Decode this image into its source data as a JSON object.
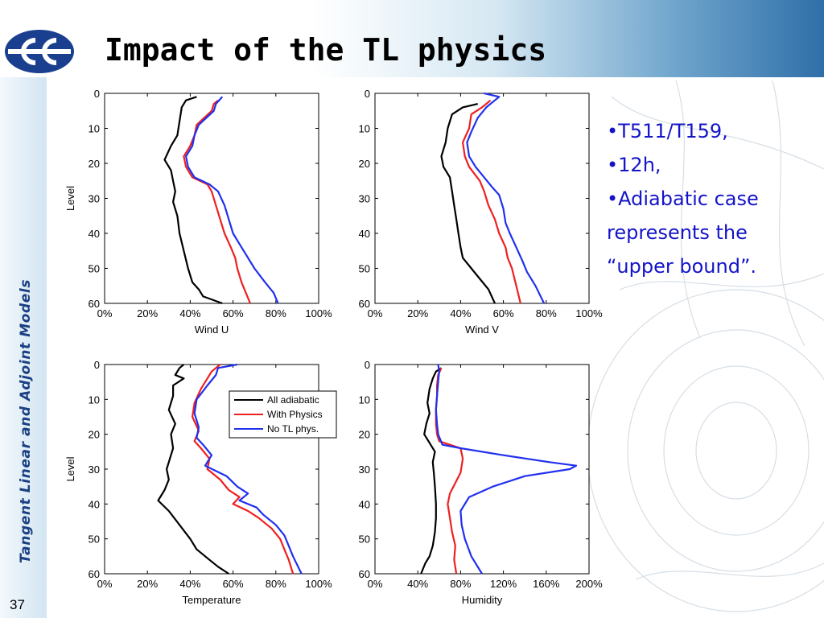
{
  "slide": {
    "title": "Impact of the TL physics",
    "side_label": "Tangent Linear and Adjoint Models",
    "slide_number": "37",
    "notes": [
      "•T511/T159,",
      "•12h,",
      "•Adiabatic case",
      "represents the",
      "“upper bound”."
    ],
    "colors": {
      "title": "#000000",
      "notes": "#1414c8",
      "side_label": "#1a3f82"
    },
    "logo_icon": "ecmwf-logo-icon"
  },
  "chart_data": [
    {
      "type": "line",
      "orientation": "vertical-profile",
      "xlabel": "Wind U",
      "ylabel": "Level",
      "xlim": [
        0,
        100
      ],
      "ylim": [
        0,
        60
      ],
      "y_inverted": true,
      "xticks": [
        "0%",
        "20%",
        "40%",
        "60%",
        "80%",
        "100%"
      ],
      "yticks": [
        "0",
        "10",
        "20",
        "30",
        "40",
        "50",
        "60"
      ],
      "legend": false,
      "series": [
        {
          "color": "#000000",
          "points": [
            [
              43,
              1
            ],
            [
              38,
              2
            ],
            [
              36,
              4
            ],
            [
              35,
              8
            ],
            [
              34,
              12
            ],
            [
              31,
              15
            ],
            [
              28,
              19
            ],
            [
              31,
              22
            ],
            [
              32,
              25
            ],
            [
              33,
              28
            ],
            [
              32,
              31
            ],
            [
              34,
              35
            ],
            [
              35,
              40
            ],
            [
              37,
              45
            ],
            [
              39,
              50
            ],
            [
              41,
              54
            ],
            [
              44,
              56
            ],
            [
              46,
              58
            ],
            [
              55,
              60
            ]
          ]
        },
        {
          "color": "#ee2020",
          "points": [
            [
              53,
              2
            ],
            [
              51,
              3
            ],
            [
              50,
              5
            ],
            [
              43,
              9
            ],
            [
              42,
              12
            ],
            [
              40,
              15
            ],
            [
              37,
              18
            ],
            [
              38,
              21
            ],
            [
              41,
              24
            ],
            [
              48,
              26
            ],
            [
              50,
              28
            ],
            [
              52,
              32
            ],
            [
              54,
              36
            ],
            [
              56,
              40
            ],
            [
              59,
              44
            ],
            [
              61,
              47
            ],
            [
              62,
              50
            ],
            [
              64,
              54
            ],
            [
              66,
              57
            ],
            [
              68,
              60
            ]
          ]
        },
        {
          "color": "#2030ee",
          "points": [
            [
              55,
              1
            ],
            [
              52,
              3
            ],
            [
              51,
              5
            ],
            [
              44,
              9
            ],
            [
              42,
              12
            ],
            [
              41,
              15
            ],
            [
              38,
              18
            ],
            [
              39,
              21
            ],
            [
              42,
              24
            ],
            [
              49,
              26
            ],
            [
              53,
              28
            ],
            [
              56,
              32
            ],
            [
              58,
              36
            ],
            [
              60,
              40
            ],
            [
              64,
              44
            ],
            [
              67,
              47
            ],
            [
              70,
              50
            ],
            [
              75,
              54
            ],
            [
              79,
              57
            ],
            [
              81,
              60
            ]
          ]
        }
      ]
    },
    {
      "type": "line",
      "orientation": "vertical-profile",
      "xlabel": "Wind V",
      "ylabel": "",
      "xlim": [
        0,
        100
      ],
      "ylim": [
        0,
        60
      ],
      "y_inverted": true,
      "xticks": [
        "0%",
        "20%",
        "40%",
        "60%",
        "80%",
        "100%"
      ],
      "yticks": [
        "0",
        "10",
        "20",
        "30",
        "40",
        "50",
        "60"
      ],
      "legend": false,
      "series": [
        {
          "color": "#000000",
          "points": [
            [
              48,
              3
            ],
            [
              41,
              4
            ],
            [
              36,
              6
            ],
            [
              34,
              10
            ],
            [
              33,
              14
            ],
            [
              31,
              18
            ],
            [
              32,
              21
            ],
            [
              35,
              24
            ],
            [
              36,
              28
            ],
            [
              37,
              32
            ],
            [
              38,
              36
            ],
            [
              39,
              40
            ],
            [
              40,
              44
            ],
            [
              41,
              47
            ],
            [
              45,
              50
            ],
            [
              49,
              53
            ],
            [
              53,
              56
            ],
            [
              56,
              60
            ]
          ]
        },
        {
          "color": "#ee2020",
          "points": [
            [
              54,
              2
            ],
            [
              50,
              4
            ],
            [
              45,
              6
            ],
            [
              44,
              10
            ],
            [
              41,
              14
            ],
            [
              42,
              18
            ],
            [
              44,
              21
            ],
            [
              49,
              25
            ],
            [
              51,
              28
            ],
            [
              53,
              32
            ],
            [
              56,
              36
            ],
            [
              58,
              40
            ],
            [
              61,
              44
            ],
            [
              62,
              47
            ],
            [
              64,
              50
            ],
            [
              66,
              55
            ],
            [
              68,
              60
            ]
          ]
        },
        {
          "color": "#2030ee",
          "points": [
            [
              51,
              0
            ],
            [
              58,
              1
            ],
            [
              52,
              4
            ],
            [
              48,
              7
            ],
            [
              45,
              11
            ],
            [
              43,
              14
            ],
            [
              44,
              18
            ],
            [
              47,
              21
            ],
            [
              51,
              24
            ],
            [
              55,
              27
            ],
            [
              58,
              29
            ],
            [
              60,
              33
            ],
            [
              61,
              37
            ],
            [
              63,
              40
            ],
            [
              66,
              44
            ],
            [
              69,
              48
            ],
            [
              71,
              51
            ],
            [
              75,
              55
            ],
            [
              79,
              60
            ]
          ]
        }
      ]
    },
    {
      "type": "line",
      "orientation": "vertical-profile",
      "xlabel": "Temperature",
      "ylabel": "Level",
      "xlim": [
        0,
        100
      ],
      "ylim": [
        0,
        60
      ],
      "y_inverted": true,
      "xticks": [
        "0%",
        "20%",
        "40%",
        "60%",
        "80%",
        "100%"
      ],
      "yticks": [
        "0",
        "10",
        "20",
        "30",
        "40",
        "50",
        "60"
      ],
      "legend": {
        "position": "top-right",
        "entries": [
          "All adiabatic",
          "With Physics",
          "No TL phys."
        ]
      },
      "series": [
        {
          "color": "#000000",
          "points": [
            [
              37,
              0
            ],
            [
              35,
              1
            ],
            [
              33,
              3
            ],
            [
              37,
              4
            ],
            [
              32,
              6
            ],
            [
              32,
              9
            ],
            [
              30,
              13
            ],
            [
              33,
              17
            ],
            [
              31,
              20
            ],
            [
              32,
              24
            ],
            [
              30,
              28
            ],
            [
              29,
              30
            ],
            [
              30,
              33
            ],
            [
              28,
              36
            ],
            [
              25,
              39
            ],
            [
              30,
              42
            ],
            [
              35,
              46
            ],
            [
              40,
              50
            ],
            [
              43,
              53
            ],
            [
              49,
              56
            ],
            [
              53,
              58
            ],
            [
              58,
              60
            ]
          ]
        },
        {
          "color": "#ee2020",
          "points": [
            [
              54,
              0
            ],
            [
              50,
              2
            ],
            [
              48,
              4
            ],
            [
              45,
              7
            ],
            [
              42,
              11
            ],
            [
              41,
              15
            ],
            [
              44,
              19
            ],
            [
              42,
              22
            ],
            [
              45,
              24
            ],
            [
              49,
              27
            ],
            [
              48,
              30
            ],
            [
              54,
              33
            ],
            [
              58,
              36
            ],
            [
              63,
              38
            ],
            [
              60,
              40
            ],
            [
              67,
              42
            ],
            [
              72,
              44
            ],
            [
              78,
              47
            ],
            [
              82,
              50
            ],
            [
              84,
              53
            ],
            [
              86,
              56
            ],
            [
              88,
              60
            ]
          ]
        },
        {
          "color": "#2030ee",
          "points": [
            [
              62,
              0
            ],
            [
              53,
              1
            ],
            [
              52,
              3
            ],
            [
              48,
              6
            ],
            [
              43,
              10
            ],
            [
              42,
              14
            ],
            [
              44,
              18
            ],
            [
              43,
              21
            ],
            [
              46,
              23
            ],
            [
              50,
              26
            ],
            [
              47,
              29
            ],
            [
              57,
              32
            ],
            [
              62,
              35
            ],
            [
              67,
              37
            ],
            [
              63,
              39
            ],
            [
              71,
              41
            ],
            [
              74,
              43
            ],
            [
              80,
              46
            ],
            [
              84,
              49
            ],
            [
              86,
              52
            ],
            [
              88,
              55
            ],
            [
              92,
              60
            ]
          ]
        }
      ]
    },
    {
      "type": "line",
      "orientation": "vertical-profile",
      "xlabel": "Humidity",
      "ylabel": "",
      "xlim": [
        0,
        200
      ],
      "ylim": [
        0,
        60
      ],
      "y_inverted": true,
      "xticks": [
        "0%",
        "40%",
        "80%",
        "120%",
        "160%",
        "200%"
      ],
      "yticks": [
        "0",
        "10",
        "20",
        "30",
        "40",
        "50",
        "60"
      ],
      "legend": false,
      "series": [
        {
          "color": "#000000",
          "points": [
            [
              62,
              1
            ],
            [
              57,
              2
            ],
            [
              54,
              4
            ],
            [
              51,
              7
            ],
            [
              49,
              11
            ],
            [
              51,
              14
            ],
            [
              48,
              17
            ],
            [
              46,
              20
            ],
            [
              52,
              23
            ],
            [
              56,
              25
            ],
            [
              54,
              28
            ],
            [
              55,
              31
            ],
            [
              56,
              35
            ],
            [
              57,
              40
            ],
            [
              57,
              44
            ],
            [
              56,
              48
            ],
            [
              54,
              52
            ],
            [
              51,
              55
            ],
            [
              47,
              57
            ],
            [
              43,
              60
            ]
          ]
        },
        {
          "color": "#ee2020",
          "points": [
            [
              62,
              1
            ],
            [
              59,
              3
            ],
            [
              58,
              6
            ],
            [
              58,
              9
            ],
            [
              57,
              13
            ],
            [
              57,
              17
            ],
            [
              58,
              20
            ],
            [
              60,
              22
            ],
            [
              70,
              23
            ],
            [
              80,
              24
            ],
            [
              82,
              27
            ],
            [
              80,
              31
            ],
            [
              75,
              34
            ],
            [
              70,
              37
            ],
            [
              68,
              40
            ],
            [
              70,
              44
            ],
            [
              72,
              48
            ],
            [
              75,
              52
            ],
            [
              74,
              56
            ],
            [
              76,
              60
            ]
          ]
        },
        {
          "color": "#2030ee",
          "points": [
            [
              59,
              0
            ],
            [
              60,
              2
            ],
            [
              59,
              5
            ],
            [
              58,
              9
            ],
            [
              57,
              13
            ],
            [
              58,
              17
            ],
            [
              59,
              20
            ],
            [
              63,
              23
            ],
            [
              80,
              24
            ],
            [
              120,
              26
            ],
            [
              163,
              28
            ],
            [
              188,
              29
            ],
            [
              182,
              30
            ],
            [
              140,
              32
            ],
            [
              110,
              35
            ],
            [
              88,
              38
            ],
            [
              80,
              42
            ],
            [
              81,
              46
            ],
            [
              84,
              50
            ],
            [
              90,
              55
            ],
            [
              100,
              60
            ]
          ]
        }
      ]
    }
  ]
}
